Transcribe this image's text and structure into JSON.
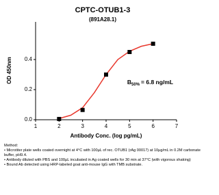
{
  "chart_data": {
    "type": "scatter",
    "title": "CPTC-OTUB1-3",
    "subtitle": "(891A28.1)",
    "x_label": "Antibody Conc. (log pg/mL)",
    "y_label": "OD 450nm",
    "xlim": [
      1,
      7
    ],
    "xticks": [
      1,
      2,
      3,
      4,
      5,
      6,
      7
    ],
    "ylim": [
      0,
      0.65
    ],
    "yticks": [
      {
        "value": 0,
        "label": "0.0"
      },
      0.2,
      0.4
    ],
    "points": {
      "x": [
        2,
        3,
        4,
        5,
        6
      ],
      "values": [
        0.005,
        0.065,
        0.3,
        0.45,
        0.505
      ],
      "color": "#000000"
    },
    "fit": {
      "x": [
        2,
        2.5,
        3,
        3.5,
        4,
        4.5,
        5,
        5.5,
        6
      ],
      "values": [
        0.008,
        0.03,
        0.08,
        0.18,
        0.3,
        0.4,
        0.455,
        0.488,
        0.505
      ],
      "color": "#e8372c"
    },
    "annotation": {
      "main": "B",
      "sub": "50%",
      "rest": "= 6.8 ng/mL",
      "x": 4.9,
      "y": 0.3
    }
  },
  "notes": {
    "heading": "Method:",
    "items": [
      "Microtiter plate wells coated overnight at 4°C  with 100µL of rec. OTUB1 (rAg 00017) at 10µg/mL in 0.2M carbonate buffer, pH9.4.",
      "Antibody diluted with PBS and 100µL incubated in Ag coated wells for 30 min at 37°C (with vigorous shaking)",
      "Bound Ab detected using HRP-labeled goat anti-mouse IgG with TMB substrate."
    ]
  }
}
